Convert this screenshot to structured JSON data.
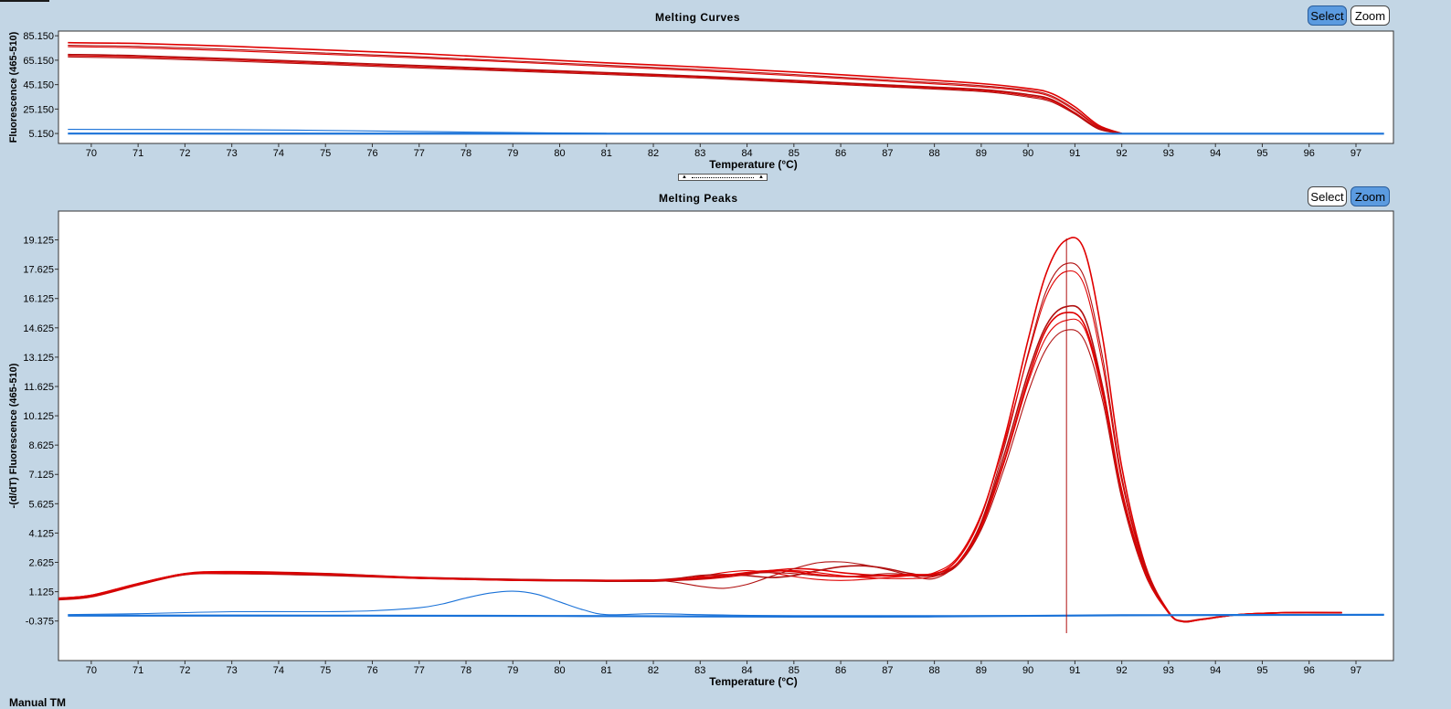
{
  "colors": {
    "background": "#c3d6e5",
    "plot_bg": "#ffffff",
    "positive": "#e00000",
    "positive_thin": "#b01010",
    "negative": "#1a72d8",
    "active_button": "#5b9be0",
    "cursor": "#b01010"
  },
  "footer": {
    "label": "Manual TM"
  },
  "chart_data": [
    {
      "type": "line",
      "title": "Melting Curves",
      "xlabel": "Temperature (°C)",
      "ylabel": "Fluorescence (465-510)",
      "xlim": [
        69.3,
        97.8
      ],
      "ylim": [
        -3,
        89
      ],
      "x_ticks": [
        70,
        71,
        72,
        73,
        74,
        75,
        76,
        77,
        78,
        79,
        80,
        81,
        82,
        83,
        84,
        85,
        86,
        87,
        88,
        89,
        90,
        91,
        92,
        93,
        94,
        95,
        96,
        97
      ],
      "y_ticks": [
        5.15,
        25.15,
        45.15,
        65.15,
        85.15
      ],
      "y_tick_labels": [
        "5.150",
        "25.150",
        "45.150",
        "65.150",
        "85.150"
      ],
      "grid": false,
      "buttons": {
        "select": "Select",
        "zoom": "Zoom",
        "active": "select"
      },
      "series": [
        {
          "group": "positive",
          "x": [
            69.5,
            71,
            73,
            75,
            77,
            79,
            81,
            83,
            85,
            87,
            89,
            90,
            90.5,
            91,
            91.5,
            92
          ],
          "y": [
            79.5,
            78.8,
            76.5,
            73.5,
            70.5,
            66.8,
            63,
            59.5,
            55.5,
            51,
            46,
            42,
            38,
            27,
            12,
            5.2
          ]
        },
        {
          "group": "positive",
          "x": [
            69.5,
            71,
            73,
            75,
            77,
            79,
            81,
            83,
            85,
            87,
            89,
            90,
            90.5,
            91,
            91.5,
            92
          ],
          "y": [
            77.3,
            76.5,
            74,
            71,
            68,
            64.5,
            61,
            57.5,
            53.5,
            49,
            44.3,
            40.5,
            36,
            25,
            11,
            5.2
          ]
        },
        {
          "group": "positive",
          "x": [
            69.5,
            71,
            73,
            75,
            77,
            79,
            81,
            83,
            85,
            87,
            89,
            90,
            90.5,
            91,
            91.5,
            92
          ],
          "y": [
            76.2,
            75.3,
            72.8,
            70,
            67,
            63.6,
            60,
            56.5,
            52.5,
            48,
            43.3,
            39.5,
            35,
            24,
            10.5,
            5.2
          ]
        },
        {
          "group": "positive",
          "x": [
            69.5,
            71,
            73,
            75,
            77,
            79,
            81,
            83,
            85,
            87,
            89,
            90,
            90.5,
            91,
            91.5,
            92
          ],
          "y": [
            69.8,
            68.8,
            66.3,
            63.5,
            60.7,
            57.8,
            55,
            52,
            48.6,
            44.8,
            41.2,
            37,
            33,
            22,
            9.5,
            5.2
          ]
        },
        {
          "group": "positive",
          "x": [
            69.5,
            71,
            73,
            75,
            77,
            79,
            81,
            83,
            85,
            87,
            89,
            90,
            90.5,
            91,
            91.5,
            92
          ],
          "y": [
            68.8,
            67.8,
            65.3,
            62.5,
            59.7,
            57,
            54.2,
            51.2,
            47.8,
            44,
            40.3,
            36,
            32,
            21.5,
            9,
            5.2
          ]
        },
        {
          "group": "positive",
          "x": [
            69.5,
            71,
            73,
            75,
            77,
            79,
            81,
            83,
            85,
            87,
            89,
            90,
            90.5,
            91,
            91.5,
            92
          ],
          "y": [
            67.8,
            66.8,
            64.3,
            61.6,
            58.8,
            56.2,
            53.4,
            50.5,
            47,
            43.3,
            39.5,
            35,
            31,
            21,
            8.8,
            5.2
          ]
        },
        {
          "group": "negative",
          "x": [
            69.5,
            73,
            75,
            77,
            79,
            81
          ],
          "y": [
            8.5,
            8.3,
            7.6,
            6.8,
            5.9,
            5.3
          ]
        },
        {
          "group": "negative",
          "x": [
            69.5,
            81,
            97.6
          ],
          "y": [
            5.1,
            5.0,
            5.0
          ]
        }
      ]
    },
    {
      "type": "line",
      "title": "Melting Peaks",
      "xlabel": "Temperature (°C)",
      "ylabel": "-(d/dT) Fluorescence (465-510)",
      "xlim": [
        69.3,
        97.8
      ],
      "ylim": [
        -2.4,
        20.6
      ],
      "x_ticks": [
        70,
        71,
        72,
        73,
        74,
        75,
        76,
        77,
        78,
        79,
        80,
        81,
        82,
        83,
        84,
        85,
        86,
        87,
        88,
        89,
        90,
        91,
        92,
        93,
        94,
        95,
        96,
        97
      ],
      "y_ticks": [
        -0.375,
        1.125,
        2.625,
        4.125,
        5.625,
        7.125,
        8.625,
        10.125,
        11.625,
        13.125,
        14.625,
        16.125,
        17.625,
        19.125
      ],
      "y_tick_labels": [
        "-0.375",
        "1.125",
        "2.625",
        "4.125",
        "5.625",
        "7.125",
        "8.625",
        "10.125",
        "11.625",
        "13.125",
        "14.625",
        "16.125",
        "17.625",
        "19.125"
      ],
      "grid": false,
      "cursor_x": 90.82,
      "buttons": {
        "select": "Select",
        "zoom": "Zoom",
        "active": "zoom"
      },
      "series": [
        {
          "group": "positive",
          "x": [
            69.3,
            70,
            71,
            72,
            73,
            75,
            77,
            79,
            81,
            82,
            82.5,
            83,
            83.5,
            84,
            84.5,
            85,
            85.5,
            86,
            86.5,
            87,
            87.5,
            88,
            88.5,
            89,
            89.5,
            90,
            90.4,
            90.8,
            91.2,
            91.6,
            92,
            92.5,
            93,
            93.3,
            93.7,
            94.5,
            95.5,
            96.7
          ],
          "y": [
            0.75,
            0.9,
            1.5,
            2.05,
            2.15,
            2.05,
            1.85,
            1.75,
            1.7,
            1.7,
            1.75,
            1.8,
            1.95,
            2.05,
            2.2,
            2.3,
            2.25,
            2.1,
            2,
            1.95,
            1.95,
            2.0,
            2.8,
            5,
            9,
            14,
            17.5,
            19.1,
            18.6,
            14,
            7.5,
            2.5,
            0.1,
            -0.4,
            -0.3,
            -0.05,
            0.05,
            0.05
          ]
        },
        {
          "group": "positive",
          "x": [
            69.3,
            70,
            71,
            72,
            73,
            75,
            77,
            79,
            81,
            82,
            82.5,
            83,
            83.5,
            84,
            84.5,
            85,
            85.5,
            86,
            86.5,
            87,
            87.5,
            88,
            88.5,
            89,
            89.5,
            90,
            90.4,
            90.8,
            91.2,
            91.6,
            92,
            92.5,
            93,
            93.3,
            93.7,
            94.5,
            95.5,
            96.7
          ],
          "y": [
            0.8,
            0.95,
            1.55,
            2.05,
            2.1,
            2.05,
            1.85,
            1.75,
            1.72,
            1.72,
            1.6,
            1.4,
            1.3,
            1.5,
            1.9,
            2.3,
            2.6,
            2.65,
            2.5,
            2.25,
            1.95,
            1.8,
            2.6,
            4.7,
            8.6,
            13.3,
            16.6,
            17.9,
            17.2,
            13,
            7,
            2.4,
            0.05,
            -0.42,
            -0.3,
            -0.05,
            0.05,
            0.05
          ]
        },
        {
          "group": "positive",
          "x": [
            69.3,
            70,
            71,
            72,
            73,
            75,
            77,
            79,
            81,
            82,
            82.5,
            83,
            83.5,
            84,
            84.5,
            85,
            85.5,
            86,
            86.5,
            87,
            87.5,
            88,
            88.5,
            89,
            89.5,
            90,
            90.4,
            90.8,
            91.2,
            91.6,
            92,
            92.5,
            93,
            93.3,
            93.7,
            94.5,
            95.5,
            96.7
          ],
          "y": [
            0.7,
            0.85,
            1.45,
            2.0,
            2.1,
            2.0,
            1.8,
            1.7,
            1.68,
            1.68,
            1.75,
            1.9,
            2.1,
            2.2,
            2.1,
            1.9,
            1.75,
            1.7,
            1.75,
            1.85,
            1.95,
            2.1,
            2.9,
            5.1,
            8.8,
            13.2,
            16.3,
            17.5,
            16.8,
            12.6,
            6.8,
            2.3,
            0.05,
            -0.4,
            -0.3,
            -0.05,
            0.05,
            0.05
          ]
        },
        {
          "group": "positive",
          "x": [
            69.3,
            70,
            71,
            72,
            73,
            75,
            77,
            79,
            81,
            82,
            82.5,
            83,
            83.5,
            84,
            84.5,
            85,
            85.5,
            86,
            86.5,
            87,
            87.5,
            88,
            88.5,
            89,
            89.5,
            90,
            90.4,
            90.8,
            91.2,
            91.6,
            92,
            92.5,
            93,
            93.3,
            93.7,
            94.5,
            95.5,
            96.7
          ],
          "y": [
            0.75,
            0.9,
            1.5,
            2.0,
            2.05,
            2.0,
            1.85,
            1.75,
            1.7,
            1.72,
            1.8,
            1.95,
            2.0,
            1.95,
            1.85,
            1.95,
            2.2,
            2.4,
            2.45,
            2.3,
            2.05,
            1.95,
            2.6,
            4.6,
            8.2,
            12.3,
            14.8,
            15.7,
            15.2,
            11.5,
            6.3,
            2.2,
            0.05,
            -0.38,
            -0.28,
            -0.05,
            0.05,
            0.05
          ]
        },
        {
          "group": "positive",
          "x": [
            69.3,
            70,
            71,
            72,
            73,
            75,
            77,
            79,
            81,
            82,
            82.5,
            83,
            83.5,
            84,
            84.5,
            85,
            85.5,
            86,
            86.5,
            87,
            87.5,
            88,
            88.5,
            89,
            89.5,
            90,
            90.4,
            90.8,
            91.2,
            91.6,
            92,
            92.5,
            93,
            93.3,
            93.7,
            94.5,
            95.5,
            96.7
          ],
          "y": [
            0.8,
            0.95,
            1.55,
            2.05,
            2.1,
            2.0,
            1.85,
            1.72,
            1.68,
            1.68,
            1.7,
            1.75,
            1.85,
            2.0,
            2.15,
            2.2,
            2.1,
            1.95,
            1.85,
            1.8,
            1.8,
            1.9,
            2.5,
            4.4,
            7.8,
            11.8,
            14.2,
            15.0,
            14.6,
            11.1,
            6.1,
            2.1,
            0.05,
            -0.4,
            -0.3,
            -0.05,
            0.05,
            0.05
          ]
        },
        {
          "group": "positive",
          "x": [
            69.3,
            70,
            71,
            72,
            73,
            75,
            77,
            79,
            81,
            82,
            82.5,
            83,
            83.5,
            84,
            84.5,
            85,
            85.5,
            86,
            86.5,
            87,
            87.5,
            88,
            88.5,
            89,
            89.5,
            90,
            90.4,
            90.8,
            91.2,
            91.6,
            92,
            92.5,
            93,
            93.3,
            93.7,
            94.5,
            95.5,
            96.7
          ],
          "y": [
            0.72,
            0.88,
            1.5,
            2.0,
            2.05,
            1.95,
            1.8,
            1.7,
            1.65,
            1.65,
            1.7,
            1.78,
            1.9,
            2.05,
            2.1,
            2.05,
            1.95,
            1.9,
            1.95,
            2.05,
            2.0,
            1.95,
            2.5,
            4.3,
            7.5,
            11.3,
            13.6,
            14.5,
            14.0,
            10.8,
            5.9,
            2.0,
            0.05,
            -0.4,
            -0.3,
            -0.05,
            0.05,
            0.05
          ]
        },
        {
          "group": "positive",
          "x": [
            69.3,
            70,
            71,
            72,
            73,
            75,
            77,
            79,
            81,
            82,
            82.5,
            83,
            83.5,
            84,
            84.5,
            85,
            85.5,
            86,
            86.5,
            87,
            87.5,
            88,
            88.5,
            89,
            89.5,
            90,
            90.4,
            90.8,
            91.2,
            91.6,
            92,
            92.5,
            93,
            93.3,
            93.7,
            94.5,
            95.5,
            96.7
          ],
          "y": [
            0.78,
            0.92,
            1.52,
            2.02,
            2.08,
            2.02,
            1.82,
            1.72,
            1.7,
            1.7,
            1.75,
            1.85,
            1.95,
            2.1,
            2.2,
            2.15,
            2.0,
            1.9,
            1.9,
            1.95,
            2.0,
            2.05,
            2.6,
            4.5,
            7.9,
            12.0,
            14.6,
            15.4,
            14.8,
            11.3,
            6.2,
            2.1,
            0.05,
            -0.4,
            -0.3,
            -0.05,
            0.05,
            0.05
          ]
        },
        {
          "group": "negative",
          "x": [
            69.5,
            71,
            73,
            75,
            76,
            77,
            77.5,
            78,
            78.5,
            79,
            79.5,
            80,
            80.5,
            81,
            82,
            83,
            85,
            90,
            97.6
          ],
          "y": [
            -0.05,
            0.0,
            0.1,
            0.1,
            0.15,
            0.3,
            0.5,
            0.8,
            1.05,
            1.15,
            1.0,
            0.6,
            0.2,
            -0.05,
            0.0,
            -0.05,
            -0.1,
            -0.1,
            -0.05
          ]
        },
        {
          "group": "negative",
          "x": [
            69.5,
            75,
            80,
            85,
            88,
            92,
            97.6
          ],
          "y": [
            -0.1,
            -0.1,
            -0.12,
            -0.15,
            -0.14,
            -0.08,
            -0.06
          ]
        }
      ]
    }
  ]
}
